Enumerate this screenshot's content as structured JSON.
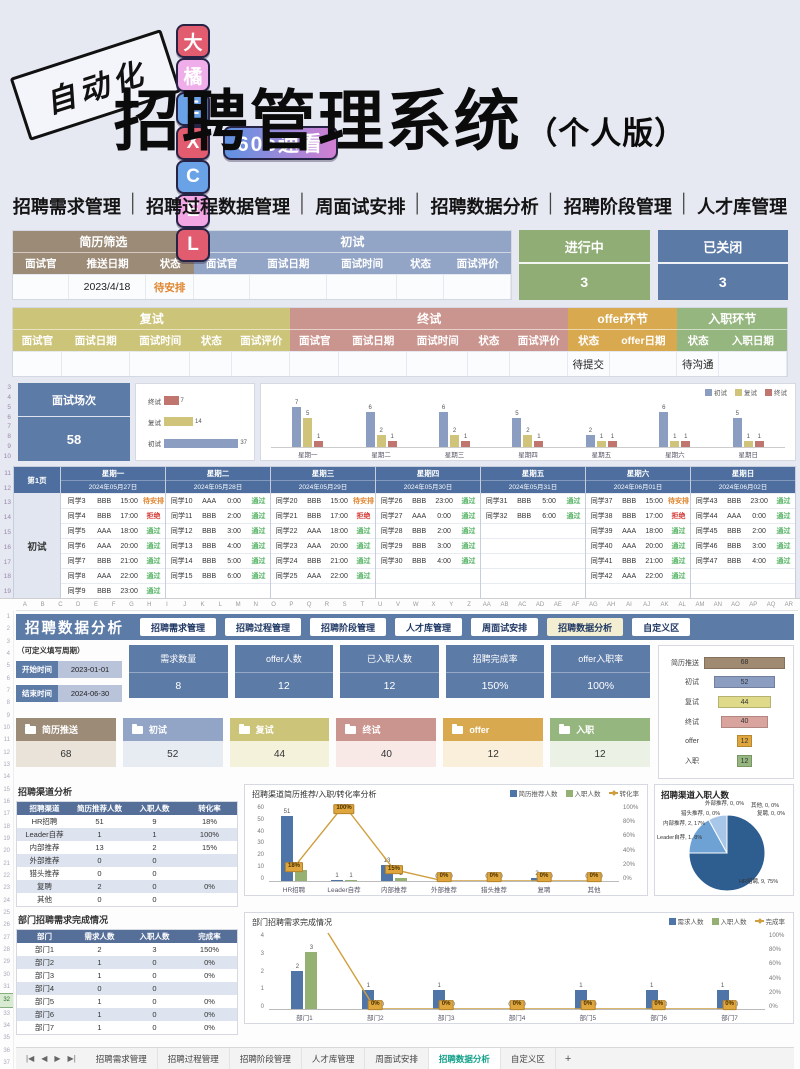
{
  "header": {
    "rotated_badge": "自动化",
    "badges": [
      {
        "text": "大",
        "bg": "#e25c70"
      },
      {
        "text": "橘",
        "bg": "#efaeea"
      },
      {
        "text": "E",
        "bg": "#6aa2e8"
      },
      {
        "text": "X",
        "bg": "#e25c70"
      },
      {
        "text": "C",
        "bg": "#6aa2e8"
      },
      {
        "text": "E",
        "bg": "#f2a6e4"
      },
      {
        "text": "L",
        "bg": "#e25c70"
      }
    ],
    "speed_badge": "60s速看",
    "title": "招聘管理系统",
    "title_suffix": "（个人版）",
    "feature_separator": "│",
    "features": [
      "招聘需求管理",
      "招聘过程数据管理",
      "周面试安排",
      "招聘数据分析",
      "招聘阶段管理",
      "人才库管理"
    ]
  },
  "stage_table1": {
    "groups": [
      {
        "label": "简历筛选",
        "color": "#9c8b77",
        "cols": [
          "面试官",
          "推送日期",
          "状态"
        ],
        "row": [
          "",
          "2023/4/18",
          "待安排"
        ]
      },
      {
        "label": "初试",
        "color": "#93a5c6",
        "cols": [
          "面试官",
          "面试日期",
          "面试时间",
          "状态",
          "面试评价"
        ],
        "row": [
          "",
          "",
          "",
          "",
          ""
        ]
      }
    ]
  },
  "status_cards": [
    {
      "label": "进行中",
      "value": "3",
      "bg": "#8fad74"
    },
    {
      "label": "已关闭",
      "value": "3",
      "bg": "#5b7ba6"
    }
  ],
  "stage_table2": {
    "groups": [
      {
        "label": "复试",
        "color": "#ccc479",
        "cols": [
          "面试官",
          "面试日期",
          "面试时间",
          "状态",
          "面试评价"
        ],
        "row": [
          "",
          "",
          "",
          "",
          ""
        ]
      },
      {
        "label": "终试",
        "color": "#cb958f",
        "cols": [
          "面试官",
          "面试日期",
          "面试时间",
          "状态",
          "面试评价"
        ],
        "row": [
          "",
          "",
          "",
          "",
          ""
        ]
      },
      {
        "label": "offer环节",
        "color": "#d9a950",
        "cols": [
          "状态",
          "offer日期"
        ],
        "row": [
          "待提交",
          ""
        ]
      },
      {
        "label": "入职环节",
        "color": "#95b67e",
        "cols": [
          "状态",
          "入职日期"
        ],
        "row": [
          "待沟通",
          ""
        ]
      }
    ]
  },
  "summary_card": {
    "label": "面试场次",
    "value": "58",
    "bg": "#5d7ba7"
  },
  "gutters": {
    "charts_rows": [
      "3",
      "4",
      "5",
      "6",
      "7",
      "8",
      "9",
      "10"
    ],
    "schedule_rows": [
      "11",
      "12",
      "13",
      "14",
      "15",
      "16",
      "17",
      "18",
      "19"
    ]
  },
  "chart_data": [
    {
      "id": "stage_bar",
      "type": "bar",
      "orientation": "horizontal",
      "categories": [
        "终试",
        "复试",
        "初试"
      ],
      "values": [
        7,
        14,
        37
      ],
      "colors": [
        "#c0766f",
        "#cfc47a",
        "#8b9dc0"
      ],
      "xlim": [
        0,
        40
      ]
    },
    {
      "id": "weekly_bar",
      "type": "bar",
      "grouped": true,
      "categories": [
        "星期一",
        "星期二",
        "星期三",
        "星期四",
        "星期五",
        "星期六",
        "星期日"
      ],
      "series": [
        {
          "name": "初试",
          "color": "#8b9dc0",
          "values": [
            7,
            6,
            6,
            5,
            2,
            6,
            5
          ]
        },
        {
          "name": "复试",
          "color": "#cfc47a",
          "values": [
            5,
            2,
            2,
            2,
            1,
            1,
            1
          ]
        },
        {
          "name": "终试",
          "color": "#c0766f",
          "values": [
            1,
            1,
            1,
            1,
            1,
            1,
            1
          ]
        }
      ],
      "ylim": [
        0,
        8
      ],
      "legend_position": "top-right"
    },
    {
      "id": "funnel",
      "type": "bar",
      "subtype": "funnel",
      "categories": [
        "简历推送",
        "初试",
        "复试",
        "终试",
        "offer",
        "入职"
      ],
      "values": [
        68,
        52,
        44,
        40,
        12,
        12
      ],
      "colors": [
        "#a08a72",
        "#8b9dc0",
        "#dfd98a",
        "#d9a49e",
        "#dfa63e",
        "#95b67e"
      ],
      "xlim": [
        0,
        68
      ]
    },
    {
      "id": "channel_combo",
      "type": "bar",
      "combo": true,
      "title": "招聘渠道简历推荐/入职/转化率分析",
      "categories": [
        "HR招聘",
        "Leader自荐",
        "内部推荐",
        "外部推荐",
        "猎头推荐",
        "复聘",
        "其他"
      ],
      "series": [
        {
          "name": "简历推荐人数",
          "color": "#4f74a8",
          "values": [
            51,
            1,
            13,
            0,
            0,
            2,
            0
          ]
        },
        {
          "name": "入职人数",
          "color": "#94b173",
          "values": [
            9,
            1,
            2,
            0,
            0,
            0,
            0
          ]
        }
      ],
      "line": {
        "name": "转化率",
        "color": "#cf9f3f",
        "values": [
          18,
          100,
          15,
          0,
          0,
          0,
          0
        ],
        "labels": [
          "18%",
          "100%",
          "15%",
          "0%",
          "0%",
          "0%",
          "0%"
        ]
      },
      "ylim": [
        0,
        60
      ],
      "yticks": [
        "60",
        "50",
        "40",
        "30",
        "20",
        "10",
        "0"
      ],
      "y2ticks": [
        "100%",
        "80%",
        "60%",
        "40%",
        "20%",
        "0%"
      ],
      "legend_position": "top-right"
    },
    {
      "id": "channel_pie",
      "type": "pie",
      "title": "招聘渠道入职人数",
      "slices": [
        {
          "label": "HR招聘, 9, 75%",
          "value": 75,
          "color": "#2e5e90"
        },
        {
          "label": "内部推荐, 2, 17%",
          "value": 17,
          "color": "#6ea2d5"
        },
        {
          "label": "Leader自荐, 1, 8%",
          "value": 8,
          "color": "#a8c7e8"
        }
      ],
      "zero_labels": [
        "猎头推荐, 0, 0%",
        "外部推荐, 0, 0%",
        "其他, 0, 0%",
        "复聘, 0, 0%"
      ]
    },
    {
      "id": "dept_combo",
      "type": "bar",
      "combo": true,
      "title": "部门招聘需求完成情况",
      "categories": [
        "部门1",
        "部门2",
        "部门3",
        "部门4",
        "部门5",
        "部门6",
        "部门7"
      ],
      "series": [
        {
          "name": "需求人数",
          "color": "#4f74a8",
          "values": [
            2,
            1,
            1,
            0,
            1,
            1,
            1
          ]
        },
        {
          "name": "入职人数",
          "color": "#94b173",
          "values": [
            3,
            0,
            0,
            0,
            0,
            0,
            0
          ]
        }
      ],
      "line": {
        "name": "完成率",
        "color": "#cf9f3f",
        "values": [
          150,
          0,
          0,
          0,
          0,
          0,
          0
        ],
        "labels": [
          "",
          "0%",
          "0%",
          "0%",
          "0%",
          "0%",
          "0%"
        ]
      },
      "ylim": [
        0,
        4
      ],
      "yticks": [
        "4",
        "3",
        "2",
        "1",
        "0"
      ],
      "y2ticks": [
        "100%",
        "80%",
        "60%",
        "40%",
        "20%",
        "0%"
      ],
      "legend_position": "top-right"
    }
  ],
  "schedule": {
    "page_label": "第1页",
    "stage_label": "初试",
    "days": [
      {
        "day": "星期一",
        "date": "2024年05月27日",
        "rows": [
          [
            "同学3",
            "BBB",
            "15:00",
            "待安排"
          ],
          [
            "同学4",
            "BBB",
            "17:00",
            "拒绝"
          ],
          [
            "同学5",
            "AAA",
            "18:00",
            "通过"
          ],
          [
            "同学6",
            "AAA",
            "20:00",
            "通过"
          ],
          [
            "同学7",
            "BBB",
            "21:00",
            "通过"
          ],
          [
            "同学8",
            "AAA",
            "22:00",
            "通过"
          ],
          [
            "同学9",
            "BBB",
            "23:00",
            "通过"
          ]
        ]
      },
      {
        "day": "星期二",
        "date": "2024年05月28日",
        "rows": [
          [
            "同学10",
            "AAA",
            "0:00",
            "通过"
          ],
          [
            "同学11",
            "BBB",
            "2:00",
            "通过"
          ],
          [
            "同学12",
            "BBB",
            "3:00",
            "通过"
          ],
          [
            "同学13",
            "BBB",
            "4:00",
            "通过"
          ],
          [
            "同学14",
            "BBB",
            "5:00",
            "通过"
          ],
          [
            "同学15",
            "BBB",
            "6:00",
            "通过"
          ]
        ]
      },
      {
        "day": "星期三",
        "date": "2024年05月29日",
        "rows": [
          [
            "同学20",
            "BBB",
            "15:00",
            "待安排"
          ],
          [
            "同学21",
            "BBB",
            "17:00",
            "拒绝"
          ],
          [
            "同学22",
            "AAA",
            "18:00",
            "通过"
          ],
          [
            "同学23",
            "AAA",
            "20:00",
            "通过"
          ],
          [
            "同学24",
            "BBB",
            "21:00",
            "通过"
          ],
          [
            "同学25",
            "AAA",
            "22:00",
            "通过"
          ]
        ]
      },
      {
        "day": "星期四",
        "date": "2024年05月30日",
        "rows": [
          [
            "同学26",
            "BBB",
            "23:00",
            "通过"
          ],
          [
            "同学27",
            "AAA",
            "0:00",
            "通过"
          ],
          [
            "同学28",
            "BBB",
            "2:00",
            "通过"
          ],
          [
            "同学29",
            "BBB",
            "3:00",
            "通过"
          ],
          [
            "同学30",
            "BBB",
            "4:00",
            "通过"
          ]
        ]
      },
      {
        "day": "星期五",
        "date": "2024年05月31日",
        "rows": [
          [
            "同学31",
            "BBB",
            "5:00",
            "通过"
          ],
          [
            "同学32",
            "BBB",
            "6:00",
            "通过"
          ]
        ]
      },
      {
        "day": "星期六",
        "date": "2024年06月01日",
        "rows": [
          [
            "同学37",
            "BBB",
            "15:00",
            "待安排"
          ],
          [
            "同学38",
            "BBB",
            "17:00",
            "拒绝"
          ],
          [
            "同学39",
            "AAA",
            "18:00",
            "通过"
          ],
          [
            "同学40",
            "AAA",
            "20:00",
            "通过"
          ],
          [
            "同学41",
            "BBB",
            "21:00",
            "通过"
          ],
          [
            "同学42",
            "AAA",
            "22:00",
            "通过"
          ]
        ]
      },
      {
        "day": "星期日",
        "date": "2024年06月02日",
        "rows": [
          [
            "同学43",
            "BBB",
            "23:00",
            "通过"
          ],
          [
            "同学44",
            "AAA",
            "0:00",
            "通过"
          ],
          [
            "同学45",
            "BBB",
            "2:00",
            "通过"
          ],
          [
            "同学46",
            "BBB",
            "3:00",
            "通过"
          ],
          [
            "同学47",
            "BBB",
            "4:00",
            "通过"
          ]
        ]
      }
    ]
  },
  "excel": {
    "columns": [
      "A",
      "B",
      "C",
      "D",
      "E",
      "F",
      "G",
      "H",
      "I",
      "J",
      "K",
      "L",
      "M",
      "N",
      "O",
      "P",
      "Q",
      "R",
      "S",
      "T",
      "U",
      "V",
      "W",
      "X",
      "Y",
      "Z",
      "AA",
      "AB",
      "AC",
      "AD",
      "AE",
      "AF",
      "AG",
      "AH",
      "AI",
      "AJ",
      "AK",
      "AL",
      "AM",
      "AN",
      "AO",
      "AP",
      "AQ",
      "AR"
    ],
    "rows": [
      "1",
      "2",
      "3",
      "4",
      "5",
      "6",
      "7",
      "8",
      "9",
      "10",
      "11",
      "12",
      "13",
      "14",
      "15",
      "16",
      "17",
      "18",
      "19",
      "20",
      "21",
      "22",
      "23",
      "24",
      "25",
      "26",
      "27",
      "28",
      "29",
      "30",
      "31",
      "32",
      "33",
      "34",
      "35",
      "36",
      "37"
    ],
    "selected_row": "32",
    "dashboard_title": "招聘数据分析",
    "nav_buttons": [
      "招聘需求管理",
      "招聘过程管理",
      "招聘阶段管理",
      "人才库管理",
      "周面试安排",
      "招聘数据分析",
      "自定义区"
    ],
    "active_nav": "招聘数据分析",
    "period_note": "（可定义填写周期）",
    "period": [
      {
        "label": "开始时间",
        "value": "2023-01-01"
      },
      {
        "label": "结束时间",
        "value": "2024-06-30"
      }
    ],
    "kpis": [
      {
        "label": "需求数量",
        "value": "8"
      },
      {
        "label": "offer人数",
        "value": "12"
      },
      {
        "label": "已入职人数",
        "value": "12"
      },
      {
        "label": "招聘完成率",
        "value": "150%"
      },
      {
        "label": "offer入职率",
        "value": "100%"
      }
    ],
    "stages": [
      {
        "label": "简历推送",
        "value": "68",
        "bg": "#9c8b77",
        "value_bg": "#e9e3da"
      },
      {
        "label": "初试",
        "value": "52",
        "bg": "#93a5c6",
        "value_bg": "#e7ebf2"
      },
      {
        "label": "复试",
        "value": "44",
        "bg": "#ccc479",
        "value_bg": "#f5f2db"
      },
      {
        "label": "终试",
        "value": "40",
        "bg": "#cb958f",
        "value_bg": "#f8e9e7"
      },
      {
        "label": "offer",
        "value": "12",
        "bg": "#d9a950",
        "value_bg": "#f9efdb"
      },
      {
        "label": "入职",
        "value": "12",
        "bg": "#95b67e",
        "value_bg": "#ebf1e4"
      }
    ],
    "channel_title": "招聘渠道分析",
    "channel_table": {
      "headers": [
        "招聘渠道",
        "简历推荐人数",
        "入职人数",
        "转化率"
      ],
      "rows": [
        [
          "HR招聘",
          "51",
          "9",
          "18%"
        ],
        [
          "Leader自荐",
          "1",
          "1",
          "100%"
        ],
        [
          "内部推荐",
          "13",
          "2",
          "15%"
        ],
        [
          "外部推荐",
          "0",
          "0",
          ""
        ],
        [
          "猎头推荐",
          "0",
          "0",
          ""
        ],
        [
          "复聘",
          "2",
          "0",
          "0%"
        ],
        [
          "其他",
          "0",
          "0",
          ""
        ]
      ]
    },
    "dept_title": "部门招聘需求完成情况",
    "dept_table": {
      "headers": [
        "部门",
        "需求人数",
        "入职人数",
        "完成率"
      ],
      "rows": [
        [
          "部门1",
          "2",
          "3",
          "150%"
        ],
        [
          "部门2",
          "1",
          "0",
          "0%"
        ],
        [
          "部门3",
          "1",
          "0",
          "0%"
        ],
        [
          "部门4",
          "0",
          "0",
          ""
        ],
        [
          "部门5",
          "1",
          "0",
          "0%"
        ],
        [
          "部门6",
          "1",
          "0",
          "0%"
        ],
        [
          "部门7",
          "1",
          "0",
          "0%"
        ]
      ]
    }
  },
  "sheet_bar": {
    "nav_icons": [
      "|◀",
      "◀",
      "▶",
      "▶|"
    ],
    "tabs": [
      "招聘需求管理",
      "招聘过程管理",
      "招聘阶段管理",
      "人才库管理",
      "周面试安排",
      "招聘数据分析",
      "自定义区"
    ],
    "active": "招聘数据分析",
    "add_label": "+"
  }
}
